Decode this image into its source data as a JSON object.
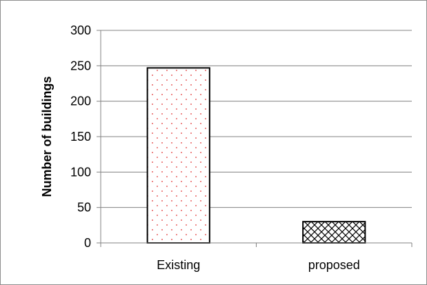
{
  "chart_data": {
    "type": "bar",
    "title": "",
    "xlabel": "",
    "ylabel": "Number of buildings",
    "categories": [
      "Existing",
      "proposed"
    ],
    "values": [
      247,
      30
    ],
    "ylim": [
      0,
      300
    ],
    "yticks": [
      0,
      50,
      100,
      150,
      200,
      250,
      300
    ],
    "grid": true,
    "legend": "none",
    "colors": {
      "bar_fill": "#ffffff",
      "bar_border": "#000000",
      "existing_pattern_dot": "#e03030",
      "proposed_pattern_line": "#000000",
      "grid": "#808080",
      "frame": "#8c8c8c"
    },
    "patterns": [
      "red-dots",
      "black-crosshatch"
    ]
  }
}
